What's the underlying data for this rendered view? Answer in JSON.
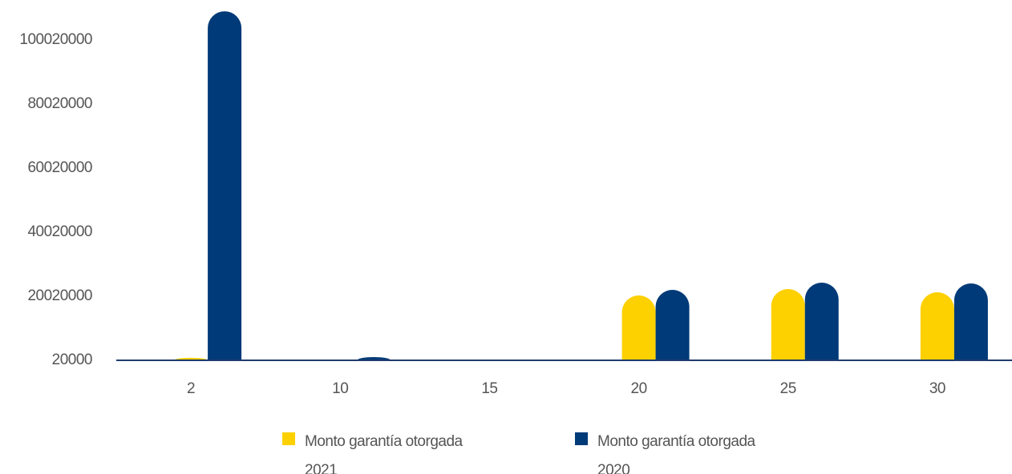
{
  "chart_data": {
    "type": "bar",
    "categories": [
      "2",
      "10",
      "15",
      "20",
      "25",
      "30"
    ],
    "series": [
      {
        "name": "Monto garantía otorgada 2021",
        "color": "#fdd000",
        "values": [
          800000,
          20000,
          20000,
          20270000,
          22270000,
          21270000
        ]
      },
      {
        "name": "Monto garantía otorgada 2020",
        "color": "#003a78",
        "values": [
          109000000,
          1020000,
          20000,
          22020000,
          24270000,
          24020000
        ]
      }
    ],
    "ylim": [
      20000,
      100020000
    ],
    "yticks": [
      20000,
      20020000,
      40020000,
      60020000,
      80020000,
      100020000
    ],
    "grid": false,
    "legend": "bottom"
  }
}
